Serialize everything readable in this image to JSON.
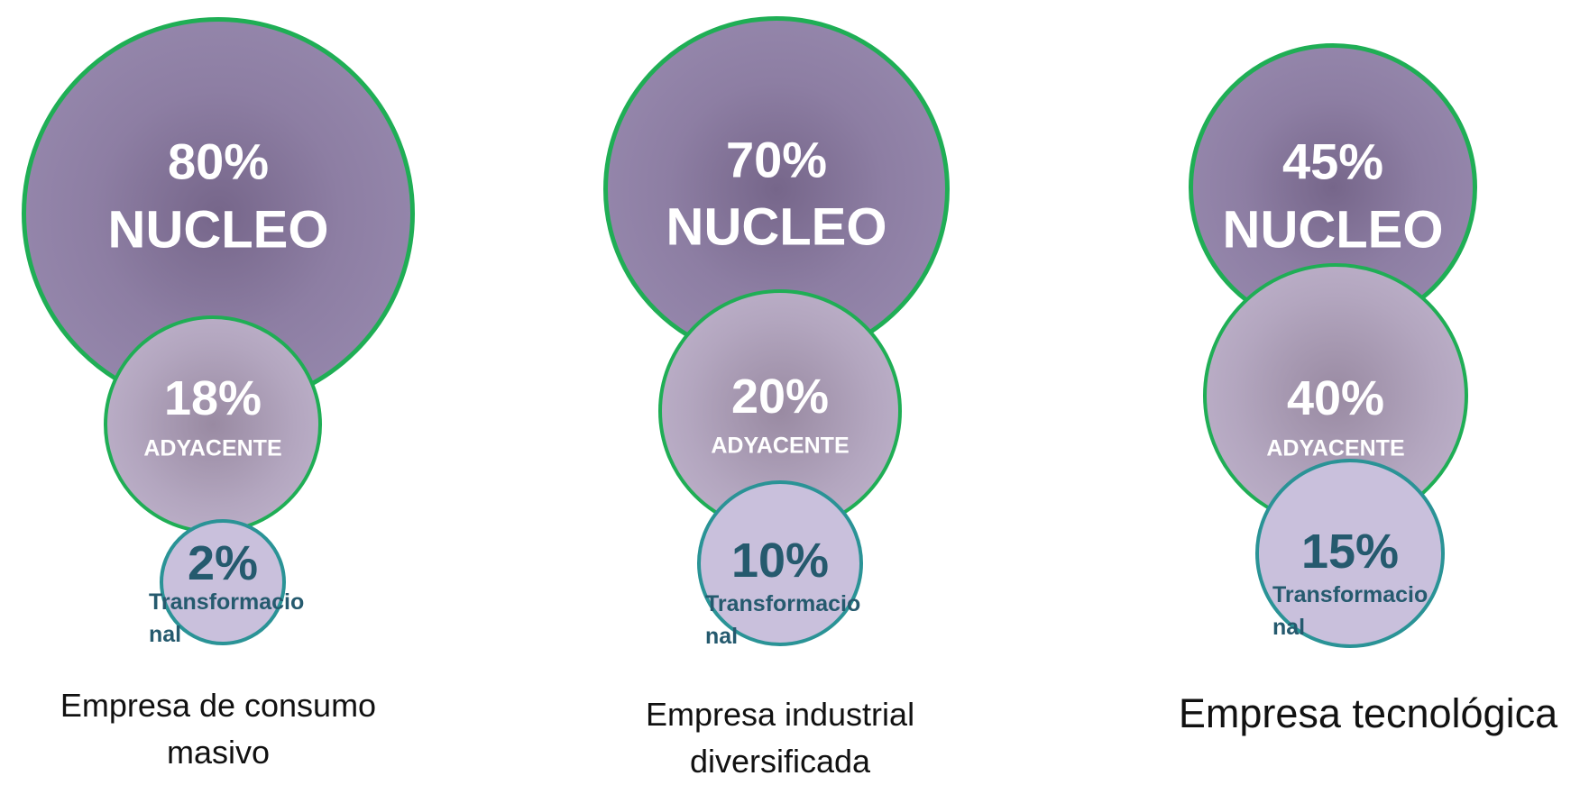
{
  "groups": [
    {
      "nucleo": {
        "value": "80%",
        "label": "NUCLEO"
      },
      "adyacente": {
        "value": "18%",
        "label": "ADYACENTE"
      },
      "transformacional": {
        "value": "2%",
        "label": "Transformacional"
      },
      "name": "Empresa de consumo masivo"
    },
    {
      "nucleo": {
        "value": "70%",
        "label": "NUCLEO"
      },
      "adyacente": {
        "value": "20%",
        "label": "ADYACENTE"
      },
      "transformacional": {
        "value": "10%",
        "label": "Transformacional"
      },
      "name": "Empresa industrial diversificada"
    },
    {
      "nucleo": {
        "value": "45%",
        "label": "NUCLEO"
      },
      "adyacente": {
        "value": "40%",
        "label": "ADYACENTE"
      },
      "transformacional": {
        "value": "15%",
        "label": "Transformacional"
      },
      "name": "Empresa tecnológica"
    }
  ]
}
